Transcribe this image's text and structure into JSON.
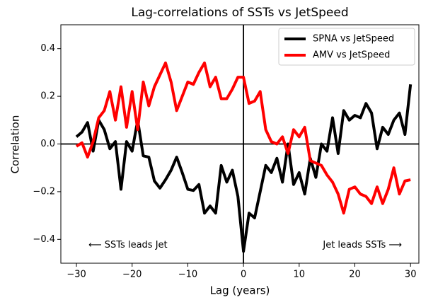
{
  "chart_data": {
    "type": "line",
    "title": "Lag-correlations of SSTs vs JetSpeed",
    "xlabel": "Lag (years)",
    "ylabel": "Correlation",
    "x": [
      -30,
      -29,
      -28,
      -27,
      -26,
      -25,
      -24,
      -23,
      -22,
      -21,
      -20,
      -19,
      -18,
      -17,
      -16,
      -15,
      -14,
      -13,
      -12,
      -11,
      -10,
      -9,
      -8,
      -7,
      -6,
      -5,
      -4,
      -3,
      -2,
      -1,
      0,
      1,
      2,
      3,
      4,
      5,
      6,
      7,
      8,
      9,
      10,
      11,
      12,
      13,
      14,
      15,
      16,
      17,
      18,
      19,
      20,
      21,
      22,
      23,
      24,
      25,
      26,
      27,
      28,
      29,
      30
    ],
    "series": [
      {
        "name": "SPNA vs JetSpeed",
        "color": "#000000",
        "values": [
          0.03,
          0.05,
          0.09,
          -0.03,
          0.1,
          0.06,
          -0.02,
          0.01,
          -0.19,
          0.01,
          -0.03,
          0.1,
          -0.05,
          -0.055,
          -0.155,
          -0.185,
          -0.15,
          -0.11,
          -0.055,
          -0.12,
          -0.19,
          -0.195,
          -0.17,
          -0.29,
          -0.26,
          -0.29,
          -0.09,
          -0.16,
          -0.11,
          -0.22,
          -0.45,
          -0.29,
          -0.31,
          -0.2,
          -0.09,
          -0.12,
          -0.06,
          -0.16,
          0.0,
          -0.17,
          -0.12,
          -0.21,
          -0.06,
          -0.14,
          0.0,
          -0.03,
          0.11,
          -0.04,
          0.14,
          0.1,
          0.12,
          0.11,
          0.17,
          0.13,
          -0.02,
          0.07,
          0.04,
          0.1,
          0.13,
          0.04,
          0.25
        ]
      },
      {
        "name": "AMV vs JetSpeed",
        "color": "#ff0000",
        "values": [
          -0.01,
          0.005,
          -0.055,
          0.01,
          0.11,
          0.14,
          0.22,
          0.1,
          0.24,
          0.07,
          0.22,
          0.06,
          0.26,
          0.16,
          0.24,
          0.29,
          0.34,
          0.26,
          0.14,
          0.2,
          0.26,
          0.25,
          0.3,
          0.34,
          0.24,
          0.28,
          0.19,
          0.19,
          0.23,
          0.28,
          0.28,
          0.17,
          0.18,
          0.22,
          0.06,
          0.01,
          0.0,
          0.03,
          -0.04,
          0.06,
          0.03,
          0.07,
          -0.07,
          -0.08,
          -0.09,
          -0.13,
          -0.16,
          -0.21,
          -0.29,
          -0.19,
          -0.18,
          -0.21,
          -0.22,
          -0.25,
          -0.18,
          -0.25,
          -0.19,
          -0.1,
          -0.21,
          -0.155,
          -0.15
        ]
      }
    ],
    "annotations": [
      "⟵ SSTs leads Jet",
      "Jet leads SSTs ⟶"
    ],
    "xlim": [
      -32.8,
      31.5
    ],
    "xticks": [
      {
        "value": -30,
        "label": "−30"
      },
      {
        "value": -20,
        "label": "−20"
      },
      {
        "value": -10,
        "label": "−10"
      },
      0,
      10,
      20,
      30
    ],
    "ylim": [
      -0.5,
      0.5
    ],
    "yticks": [
      {
        "value": -0.4,
        "label": "−0.4"
      },
      {
        "value": -0.2,
        "label": "−0.2"
      },
      {
        "value": 0,
        "label": "0.0"
      },
      0.2,
      0.4
    ],
    "legend": "upper right",
    "grid": false
  }
}
